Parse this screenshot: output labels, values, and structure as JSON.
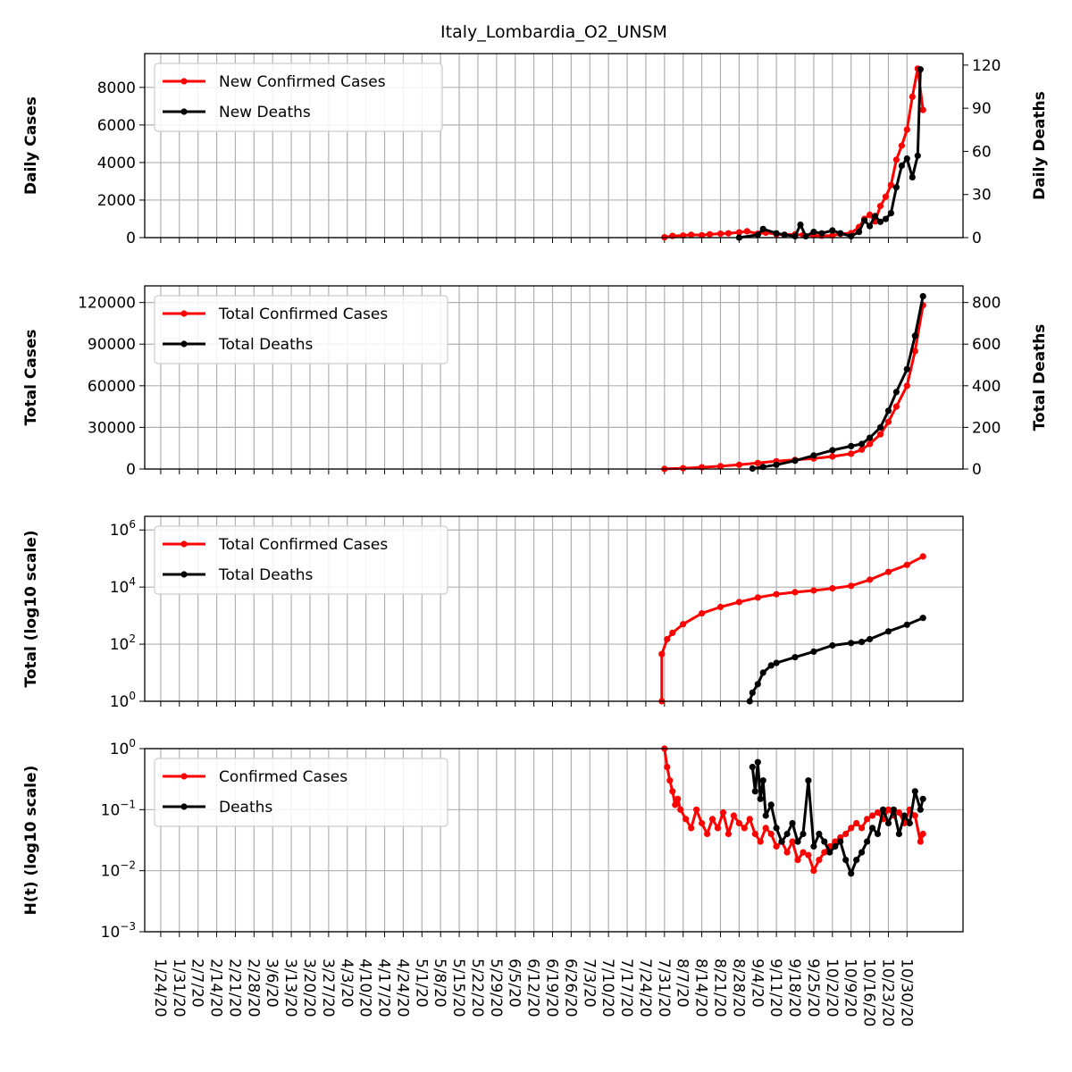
{
  "chart_data": {
    "type": "line",
    "title": "Italy_Lombardia_O2_UNSM",
    "x_dates": [
      "1/24/20",
      "1/31/20",
      "2/7/20",
      "2/14/20",
      "2/21/20",
      "2/28/20",
      "3/6/20",
      "3/13/20",
      "3/20/20",
      "3/27/20",
      "4/3/20",
      "4/10/20",
      "4/17/20",
      "4/24/20",
      "5/1/20",
      "5/8/20",
      "5/15/20",
      "5/22/20",
      "5/29/20",
      "6/5/20",
      "6/12/20",
      "6/19/20",
      "6/26/20",
      "7/3/20",
      "7/10/20",
      "7/17/20",
      "7/24/20",
      "7/31/20",
      "8/7/20",
      "8/14/20",
      "8/21/20",
      "8/28/20",
      "9/4/20",
      "9/11/20",
      "9/18/20",
      "9/25/20",
      "10/2/20",
      "10/9/20",
      "10/16/20",
      "10/23/20",
      "10/30/20"
    ],
    "x_range": [
      "1/18/20",
      "11/20/20"
    ],
    "grid": true,
    "panels": [
      {
        "ylabel_left": "Daily Cases",
        "ylabel_right": "Daily Deaths",
        "left_scale": "linear",
        "left_ylim": [
          0,
          9800
        ],
        "left_ticks": [
          "0",
          "2000",
          "4000",
          "6000",
          "8000"
        ],
        "right_ylim": [
          0,
          128
        ],
        "right_ticks": [
          "0",
          "30",
          "60",
          "90",
          "120"
        ],
        "legend": "top-left",
        "series": [
          {
            "name": "New Confirmed Cases",
            "color": "#ff0000",
            "axis": "left",
            "x": [
              "7/31/20",
              "8/3/20",
              "8/7/20",
              "8/10/20",
              "8/14/20",
              "8/17/20",
              "8/21/20",
              "8/24/20",
              "8/28/20",
              "8/31/20",
              "9/4/20",
              "9/7/20",
              "9/11/20",
              "9/14/20",
              "9/18/20",
              "9/21/20",
              "9/25/20",
              "9/28/20",
              "10/2/20",
              "10/5/20",
              "10/9/20",
              "10/12/20",
              "10/14/20",
              "10/16/20",
              "10/18/20",
              "10/20/20",
              "10/22/20",
              "10/24/20",
              "10/26/20",
              "10/28/20",
              "10/30/20",
              "11/1/20",
              "11/3/20",
              "11/5/20"
            ],
            "values": [
              20,
              90,
              110,
              150,
              130,
              180,
              210,
              230,
              280,
              340,
              210,
              260,
              180,
              150,
              170,
              140,
              120,
              100,
              110,
              200,
              240,
              560,
              1000,
              1220,
              860,
              1680,
              2180,
              2800,
              4150,
              4900,
              5750,
              7500,
              9000,
              6800
            ]
          },
          {
            "name": "New Deaths",
            "color": "#000000",
            "axis": "right",
            "x": [
              "8/28/20",
              "9/4/20",
              "9/6/20",
              "9/11/20",
              "9/14/20",
              "9/18/20",
              "9/20/20",
              "9/22/20",
              "9/25/20",
              "9/28/20",
              "10/2/20",
              "10/5/20",
              "10/9/20",
              "10/12/20",
              "10/14/20",
              "10/16/20",
              "10/18/20",
              "10/20/20",
              "10/22/20",
              "10/24/20",
              "10/26/20",
              "10/28/20",
              "10/30/20",
              "11/1/20",
              "11/3/20",
              "11/4/20"
            ],
            "values": [
              0,
              2,
              6,
              3,
              2,
              1,
              9,
              1,
              4,
              3,
              5,
              3,
              1,
              4,
              12,
              8,
              15,
              11,
              13,
              17,
              35,
              50,
              55,
              42,
              57,
              117
            ]
          }
        ]
      },
      {
        "ylabel_left": "Total Cases",
        "ylabel_right": "Total Deaths",
        "left_scale": "linear",
        "left_ylim": [
          0,
          132000
        ],
        "left_ticks": [
          "0",
          "30000",
          "60000",
          "90000",
          "120000"
        ],
        "right_ylim": [
          0,
          880
        ],
        "right_ticks": [
          "0",
          "200",
          "400",
          "600",
          "800"
        ],
        "legend": "top-left",
        "series": [
          {
            "name": "Total Confirmed Cases",
            "color": "#ff0000",
            "axis": "left",
            "x": [
              "7/31/20",
              "8/7/20",
              "8/14/20",
              "8/21/20",
              "8/28/20",
              "9/4/20",
              "9/11/20",
              "9/18/20",
              "9/25/20",
              "10/2/20",
              "10/9/20",
              "10/13/20",
              "10/16/20",
              "10/20/20",
              "10/23/20",
              "10/26/20",
              "10/30/20",
              "11/2/20",
              "11/5/20"
            ],
            "values": [
              50,
              500,
              1200,
              2000,
              3000,
              4300,
              5600,
              6600,
              7600,
              9000,
              11000,
              14000,
              18000,
              25000,
              34000,
              45000,
              60000,
              85000,
              118000
            ]
          },
          {
            "name": "Total Deaths",
            "color": "#000000",
            "axis": "right",
            "x": [
              "9/2/20",
              "9/6/20",
              "9/11/20",
              "9/18/20",
              "9/25/20",
              "10/2/20",
              "10/9/20",
              "10/13/20",
              "10/16/20",
              "10/20/20",
              "10/23/20",
              "10/26/20",
              "10/30/20",
              "11/2/20",
              "11/5/20"
            ],
            "values": [
              2,
              10,
              20,
              40,
              65,
              90,
              110,
              120,
              150,
              200,
              280,
              370,
              480,
              640,
              830
            ]
          }
        ]
      },
      {
        "ylabel_left": "Total (log10 scale)",
        "left_scale": "log",
        "left_ylim": [
          1,
          3000000
        ],
        "left_ticks": [
          "10^0",
          "10^2",
          "10^4",
          "10^6"
        ],
        "legend": "top-left",
        "series": [
          {
            "name": "Total Confirmed Cases",
            "color": "#ff0000",
            "axis": "left",
            "x": [
              "7/30/20",
              "7/30/20",
              "8/1/20",
              "8/3/20",
              "8/7/20",
              "8/14/20",
              "8/21/20",
              "8/28/20",
              "9/4/20",
              "9/11/20",
              "9/18/20",
              "9/25/20",
              "10/2/20",
              "10/9/20",
              "10/16/20",
              "10/23/20",
              "10/30/20",
              "11/5/20"
            ],
            "values": [
              1,
              45,
              150,
              250,
              500,
              1200,
              2000,
              3000,
              4300,
              5600,
              6600,
              7600,
              9000,
              11000,
              18000,
              34000,
              60000,
              118000
            ]
          },
          {
            "name": "Total Deaths",
            "color": "#000000",
            "axis": "left",
            "x": [
              "9/1/20",
              "9/2/20",
              "9/4/20",
              "9/6/20",
              "9/9/20",
              "9/11/20",
              "9/18/20",
              "9/25/20",
              "10/2/20",
              "10/9/20",
              "10/13/20",
              "10/16/20",
              "10/23/20",
              "10/30/20",
              "11/5/20"
            ],
            "values": [
              1,
              2,
              4,
              10,
              18,
              22,
              35,
              55,
              90,
              110,
              120,
              150,
              280,
              480,
              830
            ]
          }
        ]
      },
      {
        "ylabel_left": "H(t) (log10 scale)",
        "left_scale": "log",
        "left_ylim": [
          0.001,
          1
        ],
        "left_ticks": [
          "10^-3",
          "10^-2",
          "10^-1",
          "10^0"
        ],
        "legend": "top-left",
        "series": [
          {
            "name": "Confirmed Cases",
            "color": "#ff0000",
            "axis": "left",
            "x": [
              "7/31/20",
              "8/1/20",
              "8/2/20",
              "8/3/20",
              "8/4/20",
              "8/5/20",
              "8/6/20",
              "8/8/20",
              "8/10/20",
              "8/12/20",
              "8/14/20",
              "8/16/20",
              "8/18/20",
              "8/20/20",
              "8/22/20",
              "8/24/20",
              "8/26/20",
              "8/28/20",
              "8/30/20",
              "9/1/20",
              "9/3/20",
              "9/5/20",
              "9/7/20",
              "9/9/20",
              "9/11/20",
              "9/13/20",
              "9/15/20",
              "9/17/20",
              "9/19/20",
              "9/21/20",
              "9/23/20",
              "9/25/20",
              "9/27/20",
              "9/29/20",
              "10/1/20",
              "10/3/20",
              "10/5/20",
              "10/7/20",
              "10/9/20",
              "10/11/20",
              "10/13/20",
              "10/15/20",
              "10/17/20",
              "10/19/20",
              "10/21/20",
              "10/23/20",
              "10/25/20",
              "10/27/20",
              "10/29/20",
              "10/31/20",
              "11/2/20",
              "11/4/20",
              "11/5/20"
            ],
            "values": [
              1.0,
              0.5,
              0.3,
              0.2,
              0.12,
              0.15,
              0.1,
              0.07,
              0.05,
              0.1,
              0.06,
              0.04,
              0.07,
              0.05,
              0.09,
              0.04,
              0.08,
              0.06,
              0.05,
              0.07,
              0.04,
              0.03,
              0.05,
              0.04,
              0.025,
              0.03,
              0.02,
              0.03,
              0.015,
              0.02,
              0.018,
              0.01,
              0.015,
              0.02,
              0.025,
              0.03,
              0.035,
              0.04,
              0.05,
              0.06,
              0.05,
              0.07,
              0.08,
              0.09,
              0.07,
              0.1,
              0.08,
              0.09,
              0.06,
              0.1,
              0.08,
              0.03,
              0.04
            ]
          },
          {
            "name": "Deaths",
            "color": "#000000",
            "axis": "left",
            "x": [
              "9/2/20",
              "9/3/20",
              "9/4/20",
              "9/5/20",
              "9/6/20",
              "9/7/20",
              "9/9/20",
              "9/11/20",
              "9/13/20",
              "9/15/20",
              "9/17/20",
              "9/19/20",
              "9/21/20",
              "9/23/20",
              "9/25/20",
              "9/27/20",
              "9/29/20",
              "10/1/20",
              "10/3/20",
              "10/5/20",
              "10/7/20",
              "10/9/20",
              "10/11/20",
              "10/13/20",
              "10/15/20",
              "10/17/20",
              "10/19/20",
              "10/21/20",
              "10/23/20",
              "10/25/20",
              "10/27/20",
              "10/29/20",
              "10/31/20",
              "11/2/20",
              "11/4/20",
              "11/5/20"
            ],
            "values": [
              0.5,
              0.2,
              0.6,
              0.15,
              0.3,
              0.08,
              0.12,
              0.05,
              0.03,
              0.04,
              0.06,
              0.03,
              0.04,
              0.3,
              0.025,
              0.04,
              0.03,
              0.02,
              0.025,
              0.03,
              0.015,
              0.009,
              0.015,
              0.02,
              0.03,
              0.05,
              0.04,
              0.1,
              0.06,
              0.1,
              0.04,
              0.08,
              0.06,
              0.2,
              0.1,
              0.15
            ]
          }
        ]
      }
    ]
  }
}
